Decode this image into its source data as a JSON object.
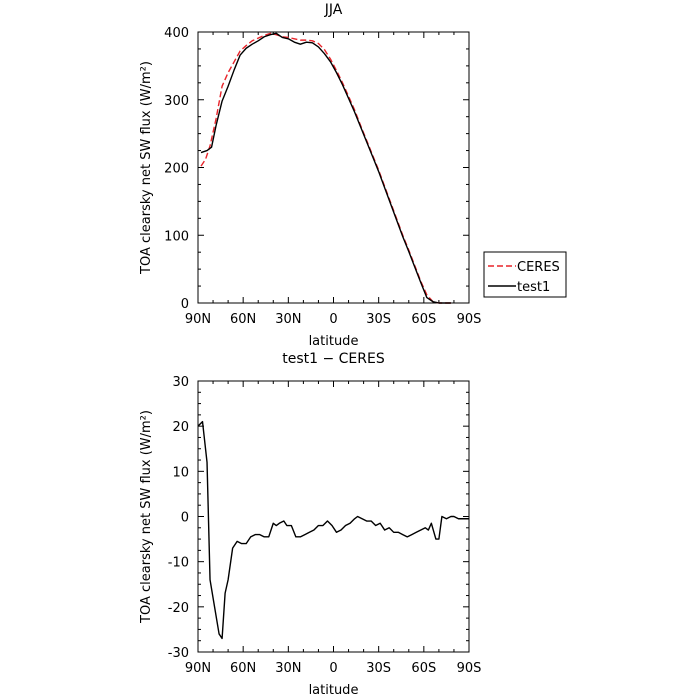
{
  "chart_data": [
    {
      "type": "line",
      "title": "JJA",
      "xlabel": "latitude",
      "ylabel": "TOA clearsky net SW flux (W/m²)",
      "xlim": [
        90,
        -90
      ],
      "ylim": [
        0,
        400
      ],
      "xticks": [
        {
          "value": 90,
          "label": "90N"
        },
        {
          "value": 60,
          "label": "60N"
        },
        {
          "value": 30,
          "label": "30N"
        },
        {
          "value": 0,
          "label": "0"
        },
        {
          "value": -30,
          "label": "30S"
        },
        {
          "value": -60,
          "label": "60S"
        },
        {
          "value": -90,
          "label": "90S"
        }
      ],
      "yticks": [
        0,
        100,
        200,
        300,
        400
      ],
      "legend_position": "right",
      "series": [
        {
          "name": "CERES",
          "color": "#e8242a",
          "dash": "dashed",
          "x": [
            88,
            85,
            82,
            78,
            74,
            70,
            66,
            62,
            58,
            54,
            50,
            46,
            42,
            38,
            34,
            30,
            26,
            22,
            18,
            14,
            10,
            6,
            2,
            -2,
            -6,
            -10,
            -14,
            -18,
            -22,
            -26,
            -30,
            -34,
            -38,
            -42,
            -46,
            -50,
            -54,
            -58,
            -62,
            -66,
            -70,
            -74,
            -78
          ],
          "y": [
            202,
            212,
            232,
            272,
            320,
            340,
            356,
            372,
            380,
            387,
            391,
            395,
            398,
            396,
            393,
            392,
            390,
            388,
            388,
            387,
            383,
            374,
            360,
            343,
            325,
            305,
            285,
            262,
            240,
            218,
            196,
            172,
            148,
            124,
            100,
            78,
            55,
            32,
            12,
            2,
            0,
            0,
            0
          ]
        },
        {
          "name": "test1",
          "color": "#000000",
          "dash": "solid",
          "x": [
            88,
            84,
            81,
            78,
            74,
            70,
            66,
            62,
            58,
            54,
            50,
            46,
            42,
            38,
            34,
            30,
            26,
            22,
            18,
            14,
            10,
            6,
            2,
            -2,
            -6,
            -10,
            -14,
            -18,
            -22,
            -26,
            -30,
            -34,
            -38,
            -42,
            -46,
            -50,
            -54,
            -58,
            -62,
            -66,
            -70,
            -74,
            -78
          ],
          "y": [
            222,
            225,
            230,
            262,
            298,
            320,
            344,
            366,
            376,
            382,
            387,
            393,
            396,
            398,
            392,
            390,
            385,
            382,
            385,
            384,
            378,
            368,
            356,
            340,
            322,
            302,
            282,
            260,
            238,
            216,
            194,
            170,
            146,
            122,
            98,
            76,
            53,
            30,
            8,
            2,
            0,
            0,
            0
          ]
        }
      ]
    },
    {
      "type": "line",
      "title": "test1 − CERES",
      "xlabel": "latitude",
      "ylabel": "TOA clearsky net SW flux (W/m²)",
      "xlim": [
        90,
        -90
      ],
      "ylim": [
        -30,
        30
      ],
      "xticks": [
        {
          "value": 90,
          "label": "90N"
        },
        {
          "value": 60,
          "label": "60N"
        },
        {
          "value": 30,
          "label": "30N"
        },
        {
          "value": 0,
          "label": "0"
        },
        {
          "value": -30,
          "label": "30S"
        },
        {
          "value": -60,
          "label": "60S"
        },
        {
          "value": -90,
          "label": "90S"
        }
      ],
      "yticks": [
        -30,
        -20,
        -10,
        0,
        10,
        20,
        30
      ],
      "series": [
        {
          "color": "#000000",
          "dash": "solid",
          "x": [
            90,
            87,
            84,
            82,
            79,
            76,
            74,
            72,
            70,
            67,
            64,
            61,
            58,
            55,
            52,
            49,
            46,
            43,
            40,
            38,
            36,
            33,
            31,
            28,
            25,
            22,
            19,
            16,
            13,
            10,
            7,
            4,
            1,
            -2,
            -5,
            -8,
            -11,
            -14,
            -16,
            -19,
            -22,
            -25,
            -28,
            -31,
            -34,
            -37,
            -40,
            -43,
            -46,
            -49,
            -52,
            -55,
            -58,
            -61,
            -63,
            -65,
            -68,
            -70,
            -72,
            -75,
            -78,
            -80,
            -83,
            -86,
            -90
          ],
          "y": [
            20,
            21,
            12,
            -14,
            -20,
            -26,
            -27,
            -17,
            -14,
            -7,
            -5.5,
            -6,
            -6,
            -4.5,
            -4,
            -4,
            -4.5,
            -4.5,
            -1.5,
            -2,
            -1.5,
            -1,
            -2,
            -2,
            -4.5,
            -4.5,
            -4,
            -3.5,
            -3,
            -2,
            -2,
            -1,
            -2,
            -3.5,
            -3,
            -2,
            -1.5,
            -0.5,
            0,
            -0.5,
            -1,
            -1,
            -2,
            -1.5,
            -3,
            -2.5,
            -3.5,
            -3.5,
            -4,
            -4.5,
            -4,
            -3.5,
            -3,
            -2.5,
            -3,
            -1.5,
            -5,
            -5,
            0,
            -0.5,
            0,
            0,
            -0.5,
            -0.5,
            -0.5
          ]
        }
      ]
    }
  ]
}
